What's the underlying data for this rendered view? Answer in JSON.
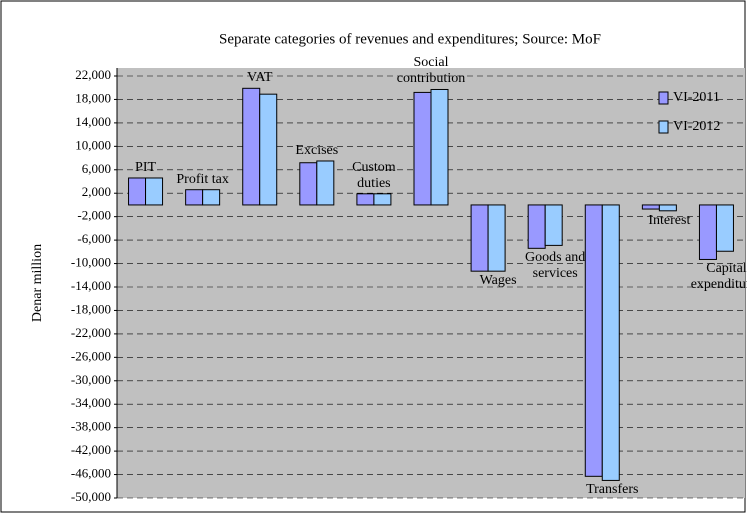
{
  "chart_data": {
    "type": "bar",
    "title": "Separate categories of revenues and expenditures; Source: MoF",
    "ylabel": "Denar million",
    "categories": [
      "PIT",
      "Profit tax",
      "VAT",
      "Excises",
      "Custom\nduties",
      "Social\ncontribution",
      "Wages",
      "Goods and\nservices",
      "Transfers",
      "Interest",
      "Capital\nexpenditures"
    ],
    "series": [
      {
        "name": "VI-2011",
        "color": "#9999ff",
        "values": [
          4600,
          2600,
          19900,
          7200,
          1900,
          19200,
          -11300,
          -7400,
          -46300,
          -700,
          -9300
        ]
      },
      {
        "name": "VI-2012",
        "color": "#99ccff",
        "values": [
          4600,
          2600,
          18900,
          7500,
          1900,
          19700,
          -11300,
          -6900,
          -47000,
          -1000,
          -7900
        ]
      }
    ],
    "ylim": [
      -50000,
      22000
    ],
    "yticks": [
      {
        "value": 22000,
        "label": "22,000"
      },
      {
        "value": 18000,
        "label": "18,000"
      },
      {
        "value": 14000,
        "label": "14,000"
      },
      {
        "value": 10000,
        "label": "10,000"
      },
      {
        "value": 6000,
        "label": "6,000"
      },
      {
        "value": 2000,
        "label": "2,000"
      },
      {
        "value": -2000,
        "label": "-2,000"
      },
      {
        "value": -6000,
        "label": "-6,000"
      },
      {
        "value": -10000,
        "label": "-10,000"
      },
      {
        "value": -14000,
        "label": "-14,000"
      },
      {
        "value": -18000,
        "label": "-18,000"
      },
      {
        "value": -22000,
        "label": "-22,000"
      },
      {
        "value": -26000,
        "label": "-26,000"
      },
      {
        "value": -30000,
        "label": "-30,000"
      },
      {
        "value": -34000,
        "label": "-34,000"
      },
      {
        "value": -38000,
        "label": "-38,000"
      },
      {
        "value": -42000,
        "label": "-42,000"
      },
      {
        "value": -46000,
        "label": "-46,000"
      },
      {
        "value": -50000,
        "label": "-50,000"
      }
    ],
    "grid": true,
    "legend": "upper right"
  }
}
